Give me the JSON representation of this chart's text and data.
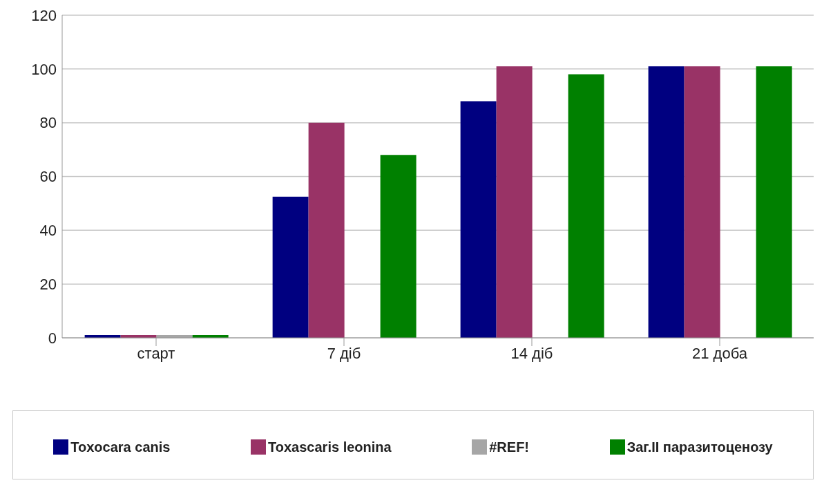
{
  "chart_data": {
    "type": "bar",
    "categories": [
      "старт",
      "7 діб",
      "14 діб",
      "21 доба"
    ],
    "series": [
      {
        "name": "Toxocara canis",
        "color": "#000080",
        "values": [
          1,
          52.5,
          88,
          101
        ]
      },
      {
        "name": "Toxascaris leonina",
        "color": "#993366",
        "values": [
          1,
          80,
          101,
          101
        ]
      },
      {
        "name": "#REF!",
        "color": "#a6a6a6",
        "values": [
          1,
          0,
          0,
          0
        ]
      },
      {
        "name": "Заг.ІІ паразитоценозу",
        "color": "#008000",
        "values": [
          1,
          68,
          98,
          101
        ]
      }
    ],
    "ylim": [
      0,
      120
    ],
    "yticks": [
      0,
      20,
      40,
      60,
      80,
      100,
      120
    ],
    "grid": "y",
    "legend": "bottom"
  }
}
